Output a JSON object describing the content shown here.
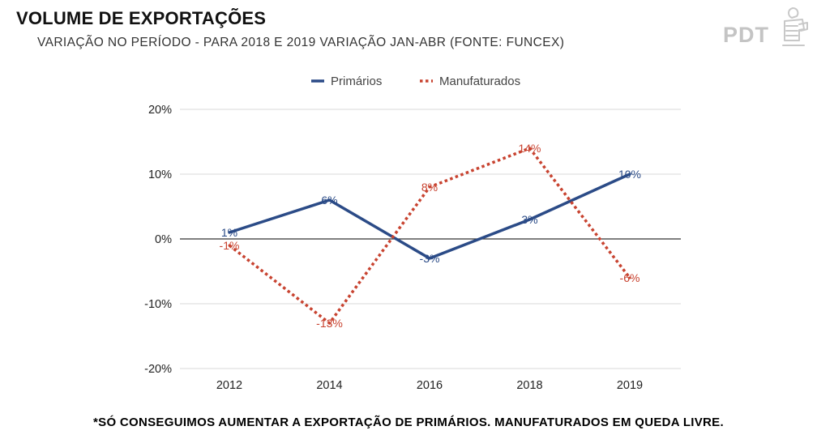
{
  "header": {
    "title": "VOLUME DE EXPORTAÇÕES",
    "subtitle": "VARIAÇÃO NO PERÍODO - PARA 2018 E 2019 VARIAÇÃO JAN-ABR (FONTE: FUNCEX)"
  },
  "logo": {
    "text": "PDT",
    "icon": "pdt-logo-icon"
  },
  "footer": {
    "note": "*SÓ CONSEGUIMOS AUMENTAR A EXPORTAÇÃO DE  PRIMÁRIOS. MANUFATURADOS EM QUEDA LIVRE."
  },
  "chart_data": {
    "type": "line",
    "title": "",
    "xlabel": "",
    "ylabel": "",
    "categories": [
      "2012",
      "2014",
      "2016",
      "2018",
      "2019"
    ],
    "ylim": [
      -20,
      20
    ],
    "yticks": [
      20,
      10,
      0,
      -10,
      -20
    ],
    "ytick_labels": [
      "20%",
      "10%",
      "0%",
      "-10%",
      "-20%"
    ],
    "grid": true,
    "legend_position": "top-center",
    "series": [
      {
        "name": "Primários",
        "values": [
          1,
          6,
          -3,
          3,
          10
        ],
        "labels": [
          "1%",
          "6%",
          "-3%",
          "3%",
          "10%"
        ],
        "color": "#2b4b87",
        "style": "solid"
      },
      {
        "name": "Manufaturados",
        "values": [
          -1,
          -13,
          8,
          14,
          -6
        ],
        "labels": [
          "-1%",
          "-13%",
          "8%",
          "14%",
          "-6%"
        ],
        "color": "#c84330",
        "style": "dotted"
      }
    ]
  }
}
